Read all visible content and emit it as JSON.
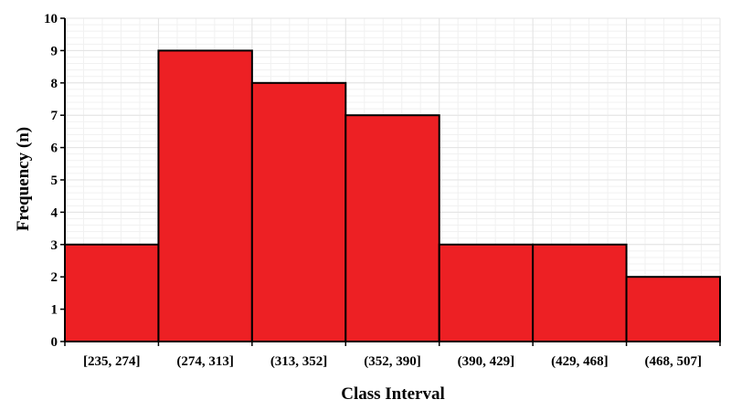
{
  "chart_data": {
    "type": "bar",
    "title": "",
    "xlabel": "Class Interval",
    "ylabel": "Frequency (n)",
    "categories": [
      "[235, 274]",
      "(274, 313]",
      "(313, 352]",
      "(352, 390]",
      "(390, 429]",
      "(429, 468]",
      "(468, 507]"
    ],
    "values": [
      3,
      9,
      8,
      7,
      3,
      3,
      2
    ],
    "ylim": [
      0,
      10
    ],
    "yticks": [
      0,
      1,
      2,
      3,
      4,
      5,
      6,
      7,
      8,
      9,
      10
    ],
    "grid": true,
    "legend": "none",
    "bar_color": "#ed2024",
    "bar_edge_color": "#000000",
    "grid_color": "#e3e3e3"
  }
}
